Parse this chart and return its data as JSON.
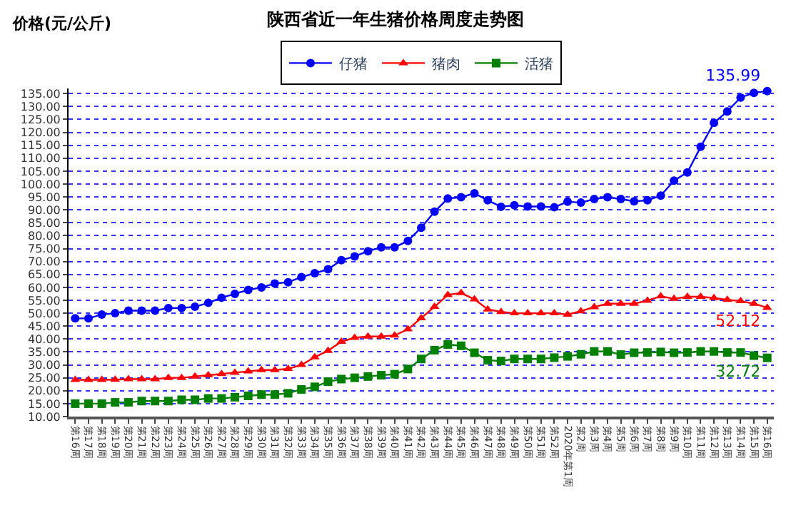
{
  "chart_data": {
    "type": "line",
    "title": "陕西省近一年生猪价格周度走势图",
    "ylabel": "价格(元/公斤)",
    "categories": [
      "第16周",
      "第17周",
      "第18周",
      "第19周",
      "第20周",
      "第21周",
      "第22周",
      "第23周",
      "第24周",
      "第25周",
      "第26周",
      "第27周",
      "第28周",
      "第29周",
      "第30周",
      "第31周",
      "第32周",
      "第33周",
      "第34周",
      "第35周",
      "第36周",
      "第37周",
      "第38周",
      "第39周",
      "第40周",
      "第41周",
      "第42周",
      "第43周",
      "第44周",
      "第45周",
      "第46周",
      "第47周",
      "第48周",
      "第49周",
      "第50周",
      "第51周",
      "第52周",
      "2020年第1周",
      "第2周",
      "第3周",
      "第4周",
      "第5周",
      "第6周",
      "第7周",
      "第8周",
      "第9周",
      "第10周",
      "第11周",
      "第12周",
      "第13周",
      "第14周",
      "第15周",
      "第16周"
    ],
    "series": [
      {
        "name": "仔猪",
        "color": "#0000ff",
        "marker": "circle",
        "values": [
          48,
          48,
          49.5,
          50,
          51,
          51,
          51,
          52,
          52,
          52.5,
          54,
          56,
          57.5,
          59,
          60,
          61.5,
          62,
          64,
          65.5,
          67,
          70.5,
          72,
          74,
          75.5,
          75.5,
          78,
          83.1,
          89.3,
          94.4,
          94.9,
          96.4,
          93.7,
          91.2,
          91.8,
          91.3,
          91.3,
          91,
          93.2,
          92.8,
          94.2,
          94.9,
          94.2,
          93.3,
          93.7,
          95.5,
          101.3,
          104.5,
          114.4,
          123.7,
          128.1,
          133.5,
          135.3,
          135.99
        ],
        "value_labels": [
          null,
          null,
          null,
          null,
          null,
          null,
          null,
          null,
          null,
          null,
          null,
          null,
          null,
          null,
          null,
          null,
          null,
          null,
          null,
          null,
          null,
          null,
          null,
          null,
          null,
          null,
          null,
          null,
          null,
          null,
          null,
          null,
          null,
          null,
          null,
          null,
          null,
          null,
          null,
          null,
          null,
          null,
          null,
          null,
          null,
          null,
          null,
          null,
          null,
          null,
          null,
          null,
          "135.99"
        ]
      },
      {
        "name": "猪肉",
        "color": "#ff0000",
        "marker": "triangle",
        "values": [
          24.2,
          24.2,
          24.2,
          24.3,
          24.5,
          24.5,
          24.5,
          25,
          25,
          25.5,
          26,
          26.5,
          27,
          27.5,
          28,
          28,
          28.5,
          30,
          33,
          35.5,
          39,
          40.5,
          41,
          41,
          41.4,
          43.8,
          48.1,
          52.5,
          57.1,
          57.8,
          55.4,
          51.5,
          50.5,
          50,
          50,
          50,
          50,
          49.5,
          50.8,
          52.4,
          53.7,
          53.7,
          53.7,
          54.9,
          56.6,
          55.6,
          56.4,
          56.4,
          55.9,
          55.2,
          54.7,
          53.7,
          52.12
        ],
        "value_labels": [
          null,
          null,
          null,
          null,
          null,
          null,
          null,
          null,
          null,
          null,
          null,
          null,
          null,
          null,
          null,
          null,
          null,
          null,
          null,
          null,
          null,
          null,
          null,
          null,
          null,
          null,
          null,
          null,
          null,
          null,
          null,
          null,
          null,
          null,
          null,
          null,
          null,
          null,
          null,
          null,
          null,
          null,
          null,
          null,
          null,
          null,
          null,
          null,
          null,
          null,
          null,
          null,
          "52.12"
        ]
      },
      {
        "name": "活猪",
        "color": "#008000",
        "marker": "square",
        "values": [
          15,
          15,
          15,
          15.5,
          15.5,
          16,
          16,
          16,
          16.5,
          16.5,
          17,
          17,
          17.5,
          18,
          18.5,
          18.5,
          19,
          20.5,
          21.5,
          23.5,
          24.5,
          25,
          25.5,
          26,
          26.4,
          28.4,
          32.3,
          35.7,
          37.9,
          37.4,
          34.7,
          31.8,
          31.5,
          32.3,
          32.3,
          32.3,
          32.8,
          33.3,
          34.1,
          35.2,
          35.2,
          34,
          34.7,
          34.8,
          35,
          34.7,
          34.8,
          35.2,
          35.2,
          34.8,
          34.8,
          33.6,
          32.72
        ],
        "value_labels": [
          null,
          null,
          null,
          null,
          null,
          null,
          null,
          null,
          null,
          null,
          null,
          null,
          null,
          null,
          null,
          null,
          null,
          null,
          null,
          null,
          null,
          null,
          null,
          null,
          null,
          null,
          null,
          null,
          null,
          null,
          null,
          null,
          null,
          null,
          null,
          null,
          null,
          null,
          null,
          null,
          null,
          null,
          null,
          null,
          null,
          null,
          null,
          null,
          null,
          null,
          null,
          null,
          "32.72"
        ]
      }
    ],
    "ylim": [
      10,
      137
    ],
    "yticks": [
      {
        "value": 10,
        "label": "10.00"
      },
      {
        "value": 15,
        "label": "15.00"
      },
      {
        "value": 20,
        "label": "20.00"
      },
      {
        "value": 25,
        "label": "25.00"
      },
      {
        "value": 30,
        "label": "30.00"
      },
      {
        "value": 35,
        "label": "35.00"
      },
      {
        "value": 40,
        "label": "40.00"
      },
      {
        "value": 45,
        "label": "45.00"
      },
      {
        "value": 50,
        "label": "50.00"
      },
      {
        "value": 55,
        "label": "55.00"
      },
      {
        "value": 60,
        "label": "60.00"
      },
      {
        "value": 65,
        "label": "65.00"
      },
      {
        "value": 70,
        "label": "70.00"
      },
      {
        "value": 75,
        "label": "75.00"
      },
      {
        "value": 80,
        "label": "80.00"
      },
      {
        "value": 85,
        "label": "85.00"
      },
      {
        "value": 90,
        "label": "90.00"
      },
      {
        "value": 95,
        "label": "95.00"
      },
      {
        "value": 100,
        "label": "100.00"
      },
      {
        "value": 105,
        "label": "105.00"
      },
      {
        "value": 110,
        "label": "110.00"
      },
      {
        "value": 115,
        "label": "115.00"
      },
      {
        "value": 120,
        "label": "120.00"
      },
      {
        "value": 125,
        "label": "125.00"
      },
      {
        "value": 130,
        "label": "130.00"
      },
      {
        "value": 135,
        "label": "135.00"
      }
    ],
    "grid": "y",
    "legend": "top"
  }
}
